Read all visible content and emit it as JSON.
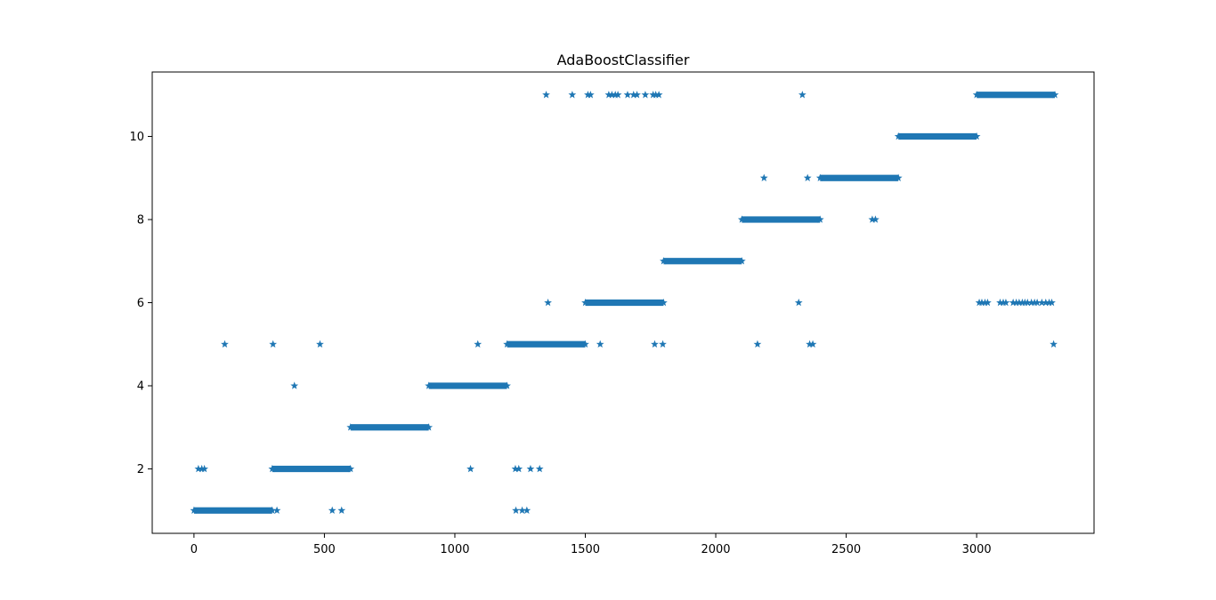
{
  "chart_data": {
    "type": "scatter",
    "title": "AdaBoostClassifier",
    "xlabel": "",
    "ylabel": "",
    "xlim": [
      -160,
      3450
    ],
    "ylim": [
      0.45,
      11.55
    ],
    "xticks": [
      0,
      500,
      1000,
      1500,
      2000,
      2500,
      3000
    ],
    "xtick_labels": [
      "0",
      "500",
      "1000",
      "1500",
      "2000",
      "2500",
      "3000"
    ],
    "yticks": [
      2,
      4,
      6,
      8,
      10
    ],
    "ytick_labels": [
      "2",
      "4",
      "6",
      "8",
      "10"
    ],
    "grid": false,
    "marker": "star",
    "color": "#1f77b4",
    "series": [
      {
        "runs": [
          {
            "x_start": 0,
            "x_end": 300,
            "y": 1
          },
          {
            "x_start": 300,
            "x_end": 600,
            "y": 2
          },
          {
            "x_start": 600,
            "x_end": 900,
            "y": 3
          },
          {
            "x_start": 900,
            "x_end": 1200,
            "y": 4
          },
          {
            "x_start": 1200,
            "x_end": 1500,
            "y": 5
          },
          {
            "x_start": 1500,
            "x_end": 1800,
            "y": 6
          },
          {
            "x_start": 1800,
            "x_end": 2100,
            "y": 7
          },
          {
            "x_start": 2100,
            "x_end": 2400,
            "y": 8
          },
          {
            "x_start": 2400,
            "x_end": 2700,
            "y": 9
          },
          {
            "x_start": 2700,
            "x_end": 3000,
            "y": 10
          },
          {
            "x_start": 3000,
            "x_end": 3300,
            "y": 11
          }
        ],
        "points": [
          {
            "x": 17,
            "y": 2
          },
          {
            "x": 30,
            "y": 2
          },
          {
            "x": 40,
            "y": 2
          },
          {
            "x": 118,
            "y": 5
          },
          {
            "x": 303,
            "y": 5
          },
          {
            "x": 483,
            "y": 5
          },
          {
            "x": 318,
            "y": 1
          },
          {
            "x": 385,
            "y": 4
          },
          {
            "x": 530,
            "y": 1
          },
          {
            "x": 566,
            "y": 1
          },
          {
            "x": 1060,
            "y": 2
          },
          {
            "x": 1088,
            "y": 5
          },
          {
            "x": 1232,
            "y": 2
          },
          {
            "x": 1245,
            "y": 2
          },
          {
            "x": 1290,
            "y": 2
          },
          {
            "x": 1325,
            "y": 2
          },
          {
            "x": 1234,
            "y": 1
          },
          {
            "x": 1258,
            "y": 1
          },
          {
            "x": 1276,
            "y": 1
          },
          {
            "x": 1350,
            "y": 11
          },
          {
            "x": 1450,
            "y": 11
          },
          {
            "x": 1510,
            "y": 11
          },
          {
            "x": 1520,
            "y": 11
          },
          {
            "x": 1590,
            "y": 11
          },
          {
            "x": 1602,
            "y": 11
          },
          {
            "x": 1615,
            "y": 11
          },
          {
            "x": 1625,
            "y": 11
          },
          {
            "x": 1662,
            "y": 11
          },
          {
            "x": 1685,
            "y": 11
          },
          {
            "x": 1698,
            "y": 11
          },
          {
            "x": 1730,
            "y": 11
          },
          {
            "x": 1760,
            "y": 11
          },
          {
            "x": 1770,
            "y": 11
          },
          {
            "x": 1782,
            "y": 11
          },
          {
            "x": 1357,
            "y": 6
          },
          {
            "x": 1557,
            "y": 5
          },
          {
            "x": 1766,
            "y": 5
          },
          {
            "x": 1797,
            "y": 5
          },
          {
            "x": 2185,
            "y": 9
          },
          {
            "x": 2160,
            "y": 5
          },
          {
            "x": 2318,
            "y": 6
          },
          {
            "x": 2332,
            "y": 11
          },
          {
            "x": 2352,
            "y": 9
          },
          {
            "x": 2360,
            "y": 5
          },
          {
            "x": 2372,
            "y": 5
          },
          {
            "x": 2600,
            "y": 8
          },
          {
            "x": 2612,
            "y": 8
          },
          {
            "x": 3010,
            "y": 6
          },
          {
            "x": 3020,
            "y": 6
          },
          {
            "x": 3032,
            "y": 6
          },
          {
            "x": 3042,
            "y": 6
          },
          {
            "x": 3090,
            "y": 6
          },
          {
            "x": 3102,
            "y": 6
          },
          {
            "x": 3112,
            "y": 6
          },
          {
            "x": 3140,
            "y": 6
          },
          {
            "x": 3152,
            "y": 6
          },
          {
            "x": 3163,
            "y": 6
          },
          {
            "x": 3175,
            "y": 6
          },
          {
            "x": 3185,
            "y": 6
          },
          {
            "x": 3195,
            "y": 6
          },
          {
            "x": 3210,
            "y": 6
          },
          {
            "x": 3222,
            "y": 6
          },
          {
            "x": 3232,
            "y": 6
          },
          {
            "x": 3250,
            "y": 6
          },
          {
            "x": 3265,
            "y": 6
          },
          {
            "x": 3278,
            "y": 6
          },
          {
            "x": 3288,
            "y": 6
          },
          {
            "x": 3295,
            "y": 5
          }
        ]
      }
    ]
  }
}
